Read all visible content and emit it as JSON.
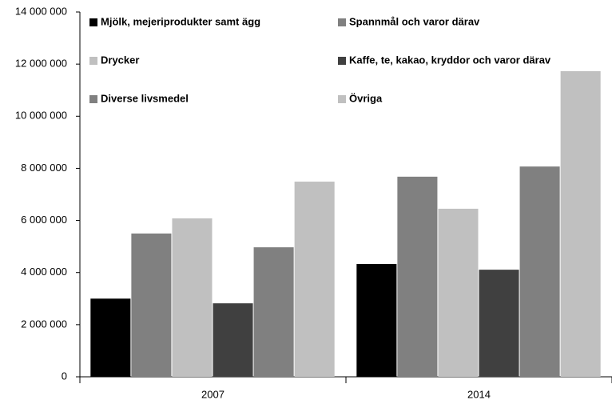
{
  "chart_data": {
    "type": "bar",
    "categories": [
      "2007",
      "2014"
    ],
    "series": [
      {
        "name": "Mjölk, mejeriprodukter samt ägg",
        "color": "#000000",
        "values": [
          3000000,
          4330000
        ]
      },
      {
        "name": "Spannmål och varor därav",
        "color": "#808080",
        "values": [
          5500000,
          7680000
        ]
      },
      {
        "name": "Drycker",
        "color": "#c0c0c0",
        "values": [
          6080000,
          6450000
        ]
      },
      {
        "name": "Kaffe, te, kakao, kryddor och varor därav",
        "color": "#404040",
        "values": [
          2820000,
          4110000
        ]
      },
      {
        "name": "Diverse livsmedel",
        "color": "#808080",
        "values": [
          4970000,
          8070000
        ]
      },
      {
        "name": "Övriga",
        "color": "#c0c0c0",
        "values": [
          7490000,
          11730000
        ]
      }
    ],
    "ylim": [
      0,
      14000000
    ],
    "yticks": [
      0,
      {
        "value": 2000000,
        "label": "2 000 000"
      },
      {
        "value": 4000000,
        "label": "4 000 000"
      },
      {
        "value": 6000000,
        "label": "6 000 000"
      },
      {
        "value": 8000000,
        "label": "8 000 000"
      },
      {
        "value": 10000000,
        "label": "10 000 000"
      },
      {
        "value": 12000000,
        "label": "12 000 000"
      },
      {
        "value": 14000000,
        "label": "14 000 000"
      }
    ]
  }
}
